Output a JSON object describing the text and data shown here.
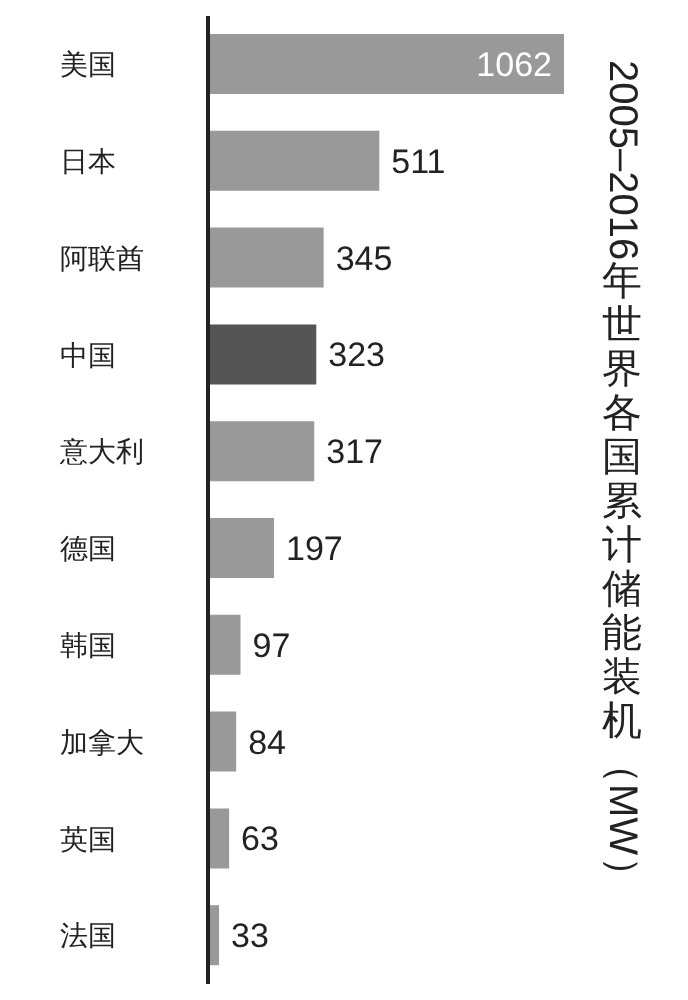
{
  "chart_data": {
    "type": "bar",
    "orientation": "horizontal",
    "title": "2005–2016 年世界各国累计储能装机（MW）",
    "categories": [
      "美国",
      "日本",
      "阿联酋",
      "中国",
      "意大利",
      "德国",
      "韩国",
      "加拿大",
      "英国",
      "法国"
    ],
    "values": [
      1062,
      511,
      345,
      323,
      317,
      197,
      97,
      84,
      63,
      33
    ],
    "colors": [
      "#999999",
      "#999999",
      "#999999",
      "#555555",
      "#999999",
      "#999999",
      "#999999",
      "#999999",
      "#999999",
      "#999999"
    ],
    "data_labels": true
  }
}
